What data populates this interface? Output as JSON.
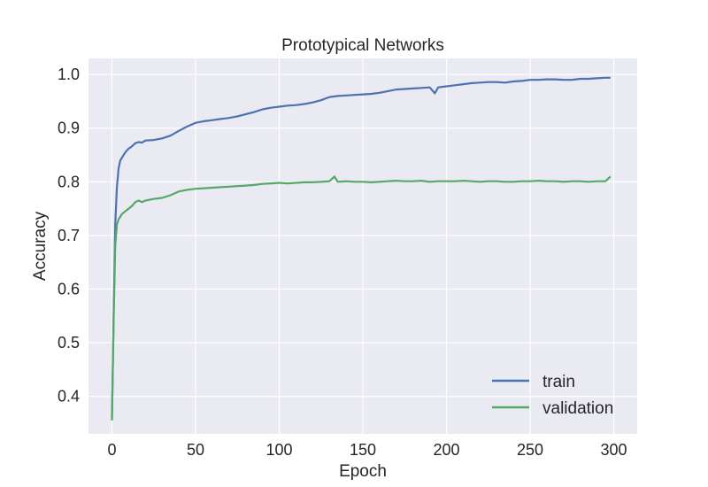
{
  "chart_data": {
    "type": "line",
    "title": "Prototypical Networks",
    "xlabel": "Epoch",
    "ylabel": "Accuracy",
    "xlim": [
      -14,
      314
    ],
    "ylim": [
      0.33,
      1.03
    ],
    "xticks": [
      0,
      50,
      100,
      150,
      200,
      250,
      300
    ],
    "yticks": [
      0.4,
      0.5,
      0.6,
      0.7,
      0.8,
      0.9,
      1.0
    ],
    "xtick_labels": [
      "0",
      "50",
      "100",
      "150",
      "200",
      "250",
      "300"
    ],
    "ytick_labels": [
      "0.4",
      "0.5",
      "0.6",
      "0.7",
      "0.8",
      "0.9",
      "1.0"
    ],
    "grid": true,
    "background": "#eaeaf2",
    "legend_position": "lower-right",
    "series": [
      {
        "name": "train",
        "color": "#4c72b0",
        "points": [
          [
            0,
            0.36
          ],
          [
            1,
            0.55
          ],
          [
            2,
            0.72
          ],
          [
            3,
            0.79
          ],
          [
            4,
            0.825
          ],
          [
            5,
            0.84
          ],
          [
            6,
            0.845
          ],
          [
            8,
            0.855
          ],
          [
            10,
            0.862
          ],
          [
            12,
            0.866
          ],
          [
            14,
            0.872
          ],
          [
            16,
            0.874
          ],
          [
            18,
            0.873
          ],
          [
            20,
            0.877
          ],
          [
            25,
            0.878
          ],
          [
            30,
            0.881
          ],
          [
            35,
            0.886
          ],
          [
            40,
            0.895
          ],
          [
            45,
            0.903
          ],
          [
            50,
            0.91
          ],
          [
            55,
            0.913
          ],
          [
            60,
            0.915
          ],
          [
            65,
            0.917
          ],
          [
            70,
            0.919
          ],
          [
            75,
            0.922
          ],
          [
            80,
            0.926
          ],
          [
            85,
            0.93
          ],
          [
            90,
            0.935
          ],
          [
            95,
            0.938
          ],
          [
            100,
            0.94
          ],
          [
            105,
            0.942
          ],
          [
            110,
            0.943
          ],
          [
            115,
            0.945
          ],
          [
            120,
            0.948
          ],
          [
            125,
            0.952
          ],
          [
            130,
            0.958
          ],
          [
            135,
            0.96
          ],
          [
            140,
            0.961
          ],
          [
            145,
            0.962
          ],
          [
            150,
            0.963
          ],
          [
            155,
            0.964
          ],
          [
            160,
            0.966
          ],
          [
            165,
            0.969
          ],
          [
            170,
            0.972
          ],
          [
            175,
            0.973
          ],
          [
            180,
            0.974
          ],
          [
            185,
            0.975
          ],
          [
            190,
            0.976
          ],
          [
            193,
            0.965
          ],
          [
            195,
            0.976
          ],
          [
            200,
            0.978
          ],
          [
            205,
            0.98
          ],
          [
            210,
            0.982
          ],
          [
            215,
            0.984
          ],
          [
            220,
            0.985
          ],
          [
            225,
            0.986
          ],
          [
            230,
            0.986
          ],
          [
            235,
            0.985
          ],
          [
            240,
            0.987
          ],
          [
            245,
            0.988
          ],
          [
            250,
            0.99
          ],
          [
            255,
            0.99
          ],
          [
            260,
            0.991
          ],
          [
            265,
            0.991
          ],
          [
            270,
            0.99
          ],
          [
            275,
            0.99
          ],
          [
            280,
            0.992
          ],
          [
            285,
            0.992
          ],
          [
            290,
            0.993
          ],
          [
            295,
            0.994
          ],
          [
            298,
            0.994
          ]
        ]
      },
      {
        "name": "validation",
        "color": "#55a868",
        "points": [
          [
            0,
            0.355
          ],
          [
            1,
            0.54
          ],
          [
            2,
            0.68
          ],
          [
            3,
            0.72
          ],
          [
            4,
            0.73
          ],
          [
            5,
            0.735
          ],
          [
            6,
            0.74
          ],
          [
            8,
            0.745
          ],
          [
            10,
            0.75
          ],
          [
            12,
            0.755
          ],
          [
            14,
            0.762
          ],
          [
            16,
            0.765
          ],
          [
            18,
            0.762
          ],
          [
            20,
            0.765
          ],
          [
            25,
            0.768
          ],
          [
            30,
            0.77
          ],
          [
            35,
            0.775
          ],
          [
            40,
            0.782
          ],
          [
            45,
            0.785
          ],
          [
            50,
            0.787
          ],
          [
            55,
            0.788
          ],
          [
            60,
            0.789
          ],
          [
            65,
            0.79
          ],
          [
            70,
            0.791
          ],
          [
            75,
            0.792
          ],
          [
            80,
            0.793
          ],
          [
            85,
            0.794
          ],
          [
            90,
            0.796
          ],
          [
            95,
            0.797
          ],
          [
            100,
            0.798
          ],
          [
            105,
            0.797
          ],
          [
            110,
            0.798
          ],
          [
            115,
            0.799
          ],
          [
            120,
            0.799
          ],
          [
            125,
            0.8
          ],
          [
            130,
            0.801
          ],
          [
            133,
            0.81
          ],
          [
            135,
            0.8
          ],
          [
            140,
            0.801
          ],
          [
            145,
            0.8
          ],
          [
            150,
            0.8
          ],
          [
            155,
            0.799
          ],
          [
            160,
            0.8
          ],
          [
            165,
            0.801
          ],
          [
            170,
            0.802
          ],
          [
            175,
            0.801
          ],
          [
            180,
            0.801
          ],
          [
            185,
            0.802
          ],
          [
            190,
            0.8
          ],
          [
            195,
            0.801
          ],
          [
            200,
            0.801
          ],
          [
            205,
            0.801
          ],
          [
            210,
            0.802
          ],
          [
            215,
            0.801
          ],
          [
            220,
            0.8
          ],
          [
            225,
            0.801
          ],
          [
            230,
            0.801
          ],
          [
            235,
            0.8
          ],
          [
            240,
            0.8
          ],
          [
            245,
            0.801
          ],
          [
            250,
            0.801
          ],
          [
            255,
            0.802
          ],
          [
            260,
            0.801
          ],
          [
            265,
            0.801
          ],
          [
            270,
            0.8
          ],
          [
            275,
            0.801
          ],
          [
            280,
            0.801
          ],
          [
            285,
            0.8
          ],
          [
            290,
            0.801
          ],
          [
            295,
            0.801
          ],
          [
            298,
            0.81
          ]
        ]
      }
    ]
  }
}
